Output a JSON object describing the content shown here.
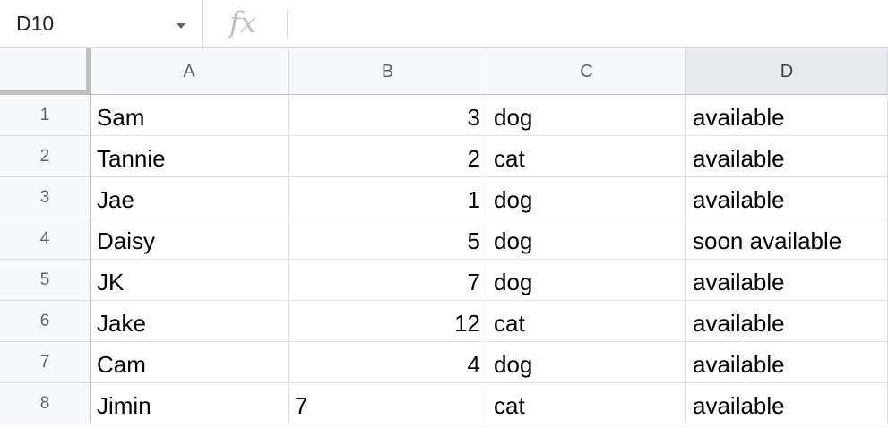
{
  "formula_bar": {
    "name_box": "D10",
    "fx_label": "fx",
    "formula": ""
  },
  "columns": [
    "A",
    "B",
    "C",
    "D"
  ],
  "selected_column": "D",
  "rows": [
    {
      "num": "1",
      "a": "Sam",
      "b": "3",
      "b_numeric": true,
      "c": "dog",
      "d": "available"
    },
    {
      "num": "2",
      "a": "Tannie",
      "b": "2",
      "b_numeric": true,
      "c": "cat",
      "d": "available"
    },
    {
      "num": "3",
      "a": "Jae",
      "b": "1",
      "b_numeric": true,
      "c": "dog",
      "d": "available"
    },
    {
      "num": "4",
      "a": "Daisy",
      "b": "5",
      "b_numeric": true,
      "c": "dog",
      "d": "soon available"
    },
    {
      "num": "5",
      "a": "JK",
      "b": "7",
      "b_numeric": true,
      "c": "dog",
      "d": "available"
    },
    {
      "num": "6",
      "a": "Jake",
      "b": "12",
      "b_numeric": true,
      "c": "cat",
      "d": "available"
    },
    {
      "num": "7",
      "a": "Cam",
      "b": "4",
      "b_numeric": true,
      "c": "dog",
      "d": "available"
    },
    {
      "num": "8",
      "a": "Jimin",
      "b": "7",
      "b_numeric": false,
      "c": "cat",
      "d": "available"
    }
  ]
}
